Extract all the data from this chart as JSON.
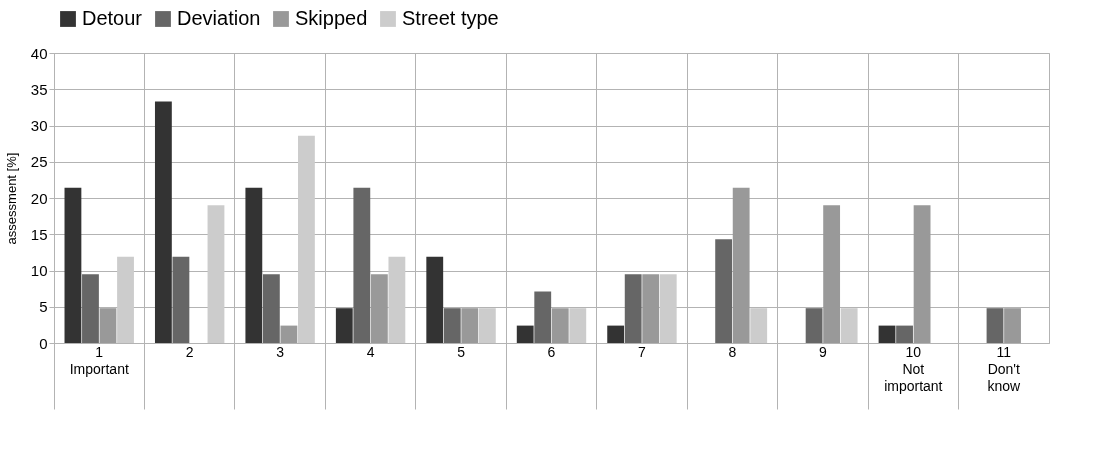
{
  "chart_data": {
    "type": "bar",
    "ylabel": "assessment [%]",
    "categories": [
      "1\nImportant",
      "2",
      "3",
      "4",
      "5",
      "6",
      "7",
      "8",
      "9",
      "10\nNot\nimportant",
      "11\nDon't\nknow"
    ],
    "series": [
      {
        "name": "Detour",
        "color": "#333333",
        "values": [
          21.4,
          33.3,
          21.4,
          4.8,
          11.9,
          2.4,
          2.4,
          0,
          0,
          2.4,
          0
        ]
      },
      {
        "name": "Deviation",
        "color": "#666666",
        "values": [
          9.5,
          11.9,
          9.5,
          21.4,
          4.8,
          7.1,
          9.5,
          14.3,
          4.8,
          2.4,
          4.8
        ]
      },
      {
        "name": "Skipped",
        "color": "#999999",
        "values": [
          4.8,
          0,
          2.4,
          9.5,
          4.8,
          4.8,
          9.5,
          21.4,
          19.0,
          19.0,
          4.8
        ]
      },
      {
        "name": "Street type",
        "color": "#cccccc",
        "values": [
          11.9,
          19.0,
          28.6,
          11.9,
          4.8,
          4.8,
          9.5,
          4.8,
          4.8,
          0,
          0
        ]
      }
    ],
    "ylim": [
      0,
      40
    ],
    "yticks": [
      0,
      5,
      10,
      15,
      20,
      25,
      30,
      35,
      40
    ],
    "grid": true,
    "legend": "top"
  }
}
